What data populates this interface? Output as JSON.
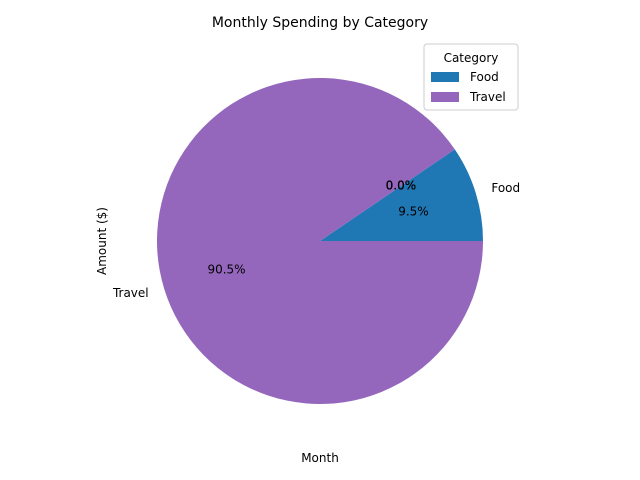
{
  "chart_data": {
    "type": "pie",
    "title": "Monthly Spending by Category",
    "xlabel": "Month",
    "ylabel": "Amount ($)",
    "slices": [
      {
        "label": "Food",
        "percent": 9.5,
        "color": "#1f77b4"
      },
      {
        "label": "",
        "percent": 0.0,
        "color": "#ff7f0e"
      },
      {
        "label": "",
        "percent": 0.0,
        "color": "#2ca02c"
      },
      {
        "label": "",
        "percent": 0.0,
        "color": "#d62728"
      },
      {
        "label": "Travel",
        "percent": 90.5,
        "color": "#9467bd"
      }
    ],
    "pct_labels": [
      "9.5%",
      "0.0%",
      "0.0%",
      "0.0%",
      "90.5%"
    ],
    "legend": {
      "title": "Category",
      "placement": "top-right",
      "entries": [
        {
          "label": "Food",
          "color": "#1f77b4"
        },
        {
          "label": "Travel",
          "color": "#9467bd"
        }
      ]
    },
    "start_angle_deg": 0,
    "direction": "counterclockwise"
  }
}
